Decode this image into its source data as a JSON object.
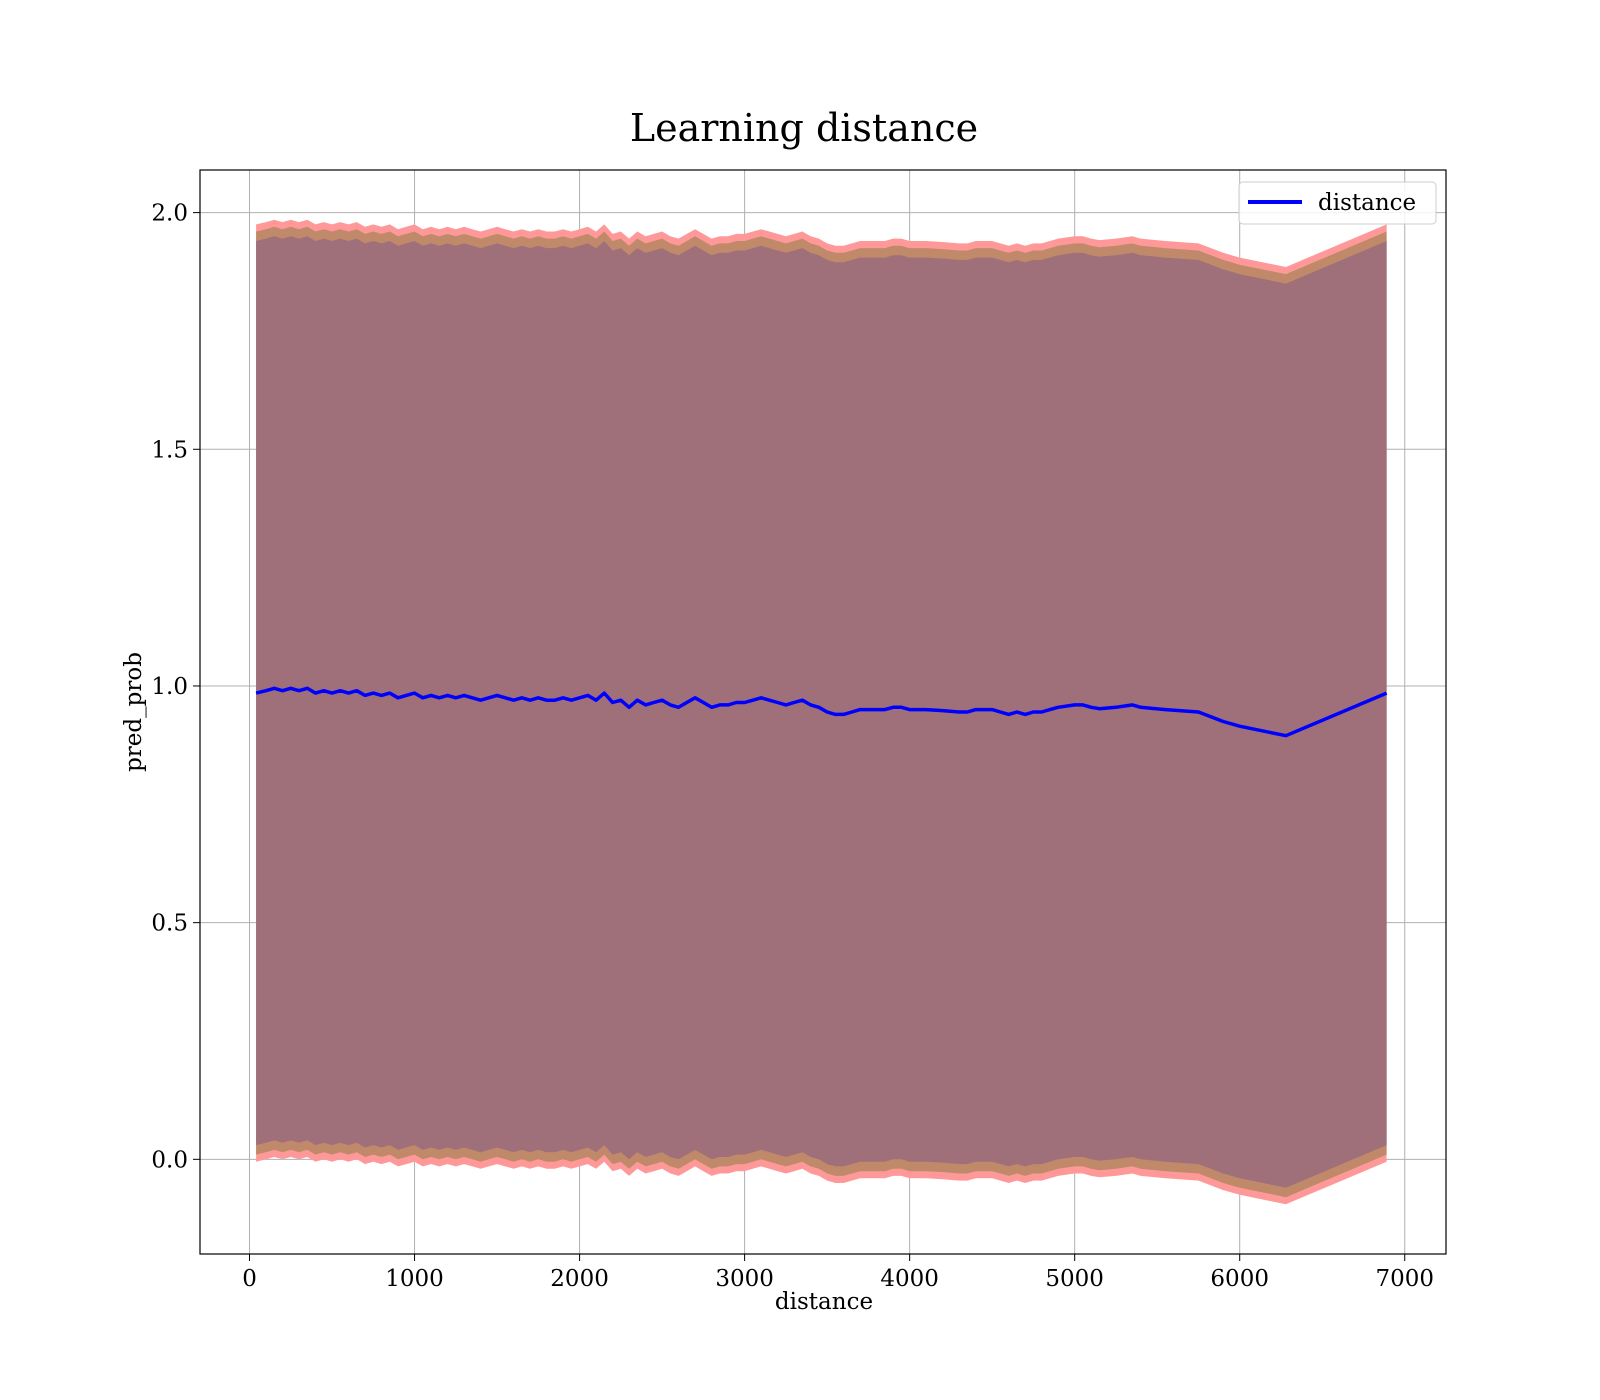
{
  "chart_data": {
    "type": "line",
    "title": "Learning distance",
    "xlabel": "distance",
    "ylabel": "pred_prob",
    "xlim": [
      -300,
      7250
    ],
    "ylim": [
      -0.2,
      2.09
    ],
    "xticks": [
      0,
      1000,
      2000,
      3000,
      4000,
      5000,
      6000,
      7000
    ],
    "yticks": [
      0.0,
      0.5,
      1.0,
      1.5,
      2.0
    ],
    "xtick_labels": [
      "0",
      "1000",
      "2000",
      "3000",
      "4000",
      "5000",
      "6000",
      "7000"
    ],
    "ytick_labels": [
      "0.0",
      "0.5",
      "1.0",
      "1.5",
      "2.0"
    ],
    "grid": true,
    "legend_position": "top-right",
    "colors": {
      "line": "#0000ff",
      "band_outer": "#ff9999",
      "band_mid": "#c08a6a",
      "band_inner": "#a0707a"
    },
    "series": [
      {
        "name": "distance",
        "x": [
          40,
          100,
          150,
          200,
          250,
          300,
          350,
          400,
          450,
          500,
          550,
          600,
          650,
          700,
          750,
          800,
          850,
          900,
          950,
          1000,
          1050,
          1100,
          1150,
          1200,
          1250,
          1300,
          1350,
          1400,
          1450,
          1500,
          1550,
          1600,
          1650,
          1700,
          1750,
          1800,
          1850,
          1900,
          1950,
          2000,
          2050,
          2100,
          2150,
          2200,
          2250,
          2300,
          2350,
          2400,
          2450,
          2500,
          2550,
          2600,
          2650,
          2700,
          2750,
          2800,
          2850,
          2900,
          2950,
          3000,
          3050,
          3100,
          3150,
          3200,
          3250,
          3300,
          3350,
          3400,
          3450,
          3500,
          3550,
          3600,
          3650,
          3700,
          3750,
          3800,
          3850,
          3900,
          3950,
          4000,
          4100,
          4200,
          4300,
          4350,
          4400,
          4500,
          4550,
          4600,
          4650,
          4700,
          4750,
          4800,
          4850,
          4900,
          5000,
          5050,
          5100,
          5150,
          5250,
          5350,
          5400,
          5550,
          5750,
          5900,
          6000,
          6280,
          6890
        ],
        "values": [
          0.985,
          0.99,
          0.995,
          0.99,
          0.995,
          0.99,
          0.995,
          0.985,
          0.99,
          0.985,
          0.99,
          0.985,
          0.99,
          0.98,
          0.985,
          0.98,
          0.985,
          0.975,
          0.98,
          0.985,
          0.975,
          0.98,
          0.975,
          0.98,
          0.975,
          0.98,
          0.975,
          0.97,
          0.975,
          0.98,
          0.975,
          0.97,
          0.975,
          0.97,
          0.975,
          0.97,
          0.97,
          0.975,
          0.97,
          0.975,
          0.98,
          0.97,
          0.985,
          0.965,
          0.97,
          0.955,
          0.97,
          0.96,
          0.965,
          0.97,
          0.96,
          0.955,
          0.965,
          0.975,
          0.965,
          0.955,
          0.96,
          0.96,
          0.965,
          0.965,
          0.97,
          0.975,
          0.97,
          0.965,
          0.96,
          0.965,
          0.97,
          0.96,
          0.955,
          0.945,
          0.94,
          0.94,
          0.945,
          0.95,
          0.95,
          0.95,
          0.95,
          0.955,
          0.955,
          0.95,
          0.95,
          0.948,
          0.945,
          0.945,
          0.95,
          0.95,
          0.945,
          0.94,
          0.945,
          0.94,
          0.945,
          0.945,
          0.95,
          0.955,
          0.96,
          0.96,
          0.955,
          0.952,
          0.955,
          0.96,
          0.955,
          0.95,
          0.945,
          0.925,
          0.915,
          0.895,
          0.985
        ]
      }
    ],
    "band_half_widths": {
      "outer": 0.99,
      "mid": 0.975,
      "inner": 0.955
    }
  }
}
